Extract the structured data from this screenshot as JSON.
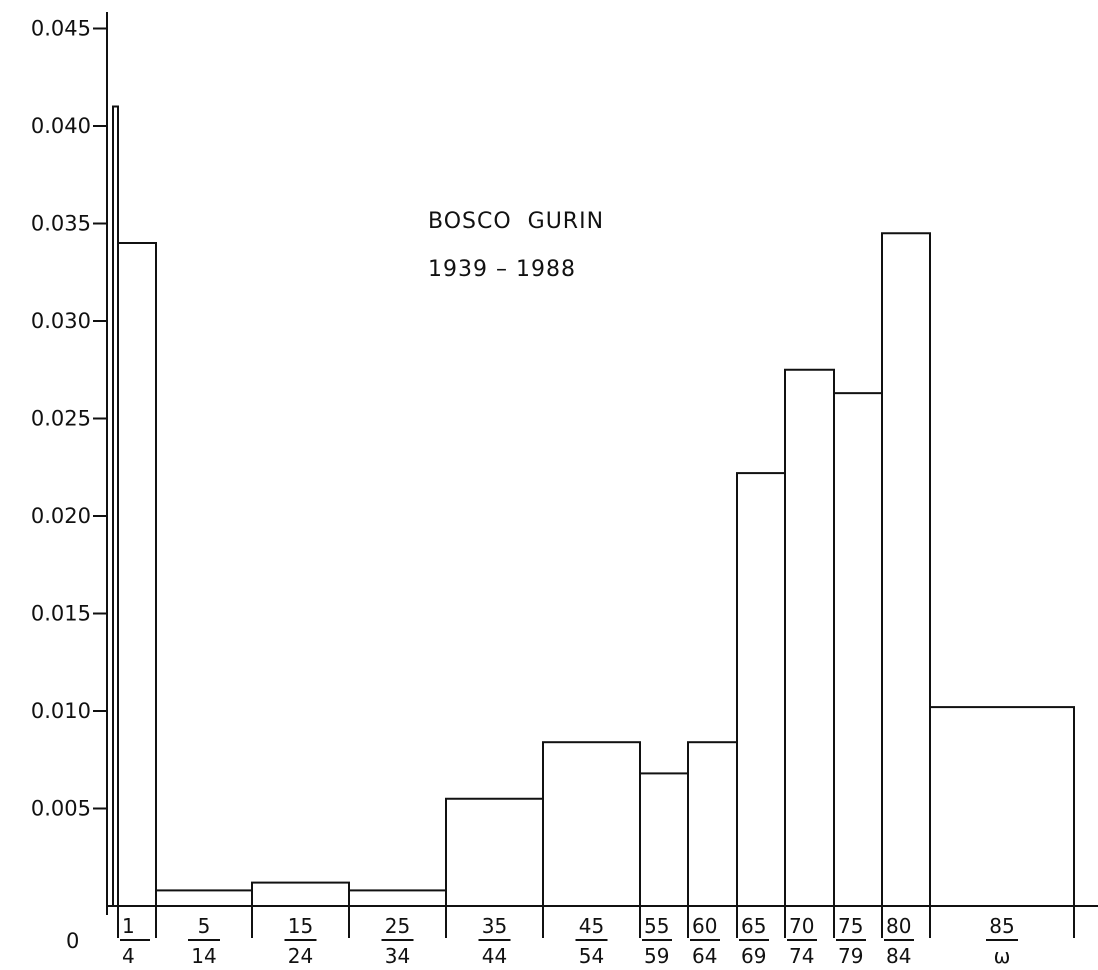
{
  "chart_data": {
    "type": "bar",
    "title": "BOSCO  GURIN",
    "subtitle": "1939 – 1988",
    "xlabel": "",
    "ylabel": "",
    "ylim": [
      0,
      0.045
    ],
    "y_ticks": [
      {
        "value": 0.005,
        "label": "0.005"
      },
      {
        "value": 0.01,
        "label": "0.010"
      },
      {
        "value": 0.015,
        "label": "0.015"
      },
      {
        "value": 0.02,
        "label": "0.020"
      },
      {
        "value": 0.025,
        "label": "0.025"
      },
      {
        "value": 0.03,
        "label": "0.030"
      },
      {
        "value": 0.035,
        "label": "0.035"
      },
      {
        "value": 0.04,
        "label": "0.040"
      },
      {
        "value": 0.045,
        "label": "0.045"
      }
    ],
    "zero_label": "0",
    "grid": false,
    "bins": [
      {
        "from": "0",
        "to": "0",
        "lower": "",
        "upper": "",
        "value": 0.041
      },
      {
        "from": "1",
        "to": "4",
        "lower": "1",
        "upper": "4",
        "value": 0.034
      },
      {
        "from": "5",
        "to": "14",
        "lower": "5",
        "upper": "14",
        "value": 0.0008
      },
      {
        "from": "15",
        "to": "24",
        "lower": "15",
        "upper": "24",
        "value": 0.0012
      },
      {
        "from": "25",
        "to": "34",
        "lower": "25",
        "upper": "34",
        "value": 0.0008
      },
      {
        "from": "35",
        "to": "44",
        "lower": "35",
        "upper": "44",
        "value": 0.0055
      },
      {
        "from": "45",
        "to": "54",
        "lower": "45",
        "upper": "54",
        "value": 0.0084
      },
      {
        "from": "55",
        "to": "59",
        "lower": "55",
        "upper": "59",
        "value": 0.0068
      },
      {
        "from": "60",
        "to": "64",
        "lower": "60",
        "upper": "64",
        "value": 0.0084
      },
      {
        "from": "65",
        "to": "69",
        "lower": "65",
        "upper": "69",
        "value": 0.0222
      },
      {
        "from": "70",
        "to": "74",
        "lower": "70",
        "upper": "74",
        "value": 0.0275
      },
      {
        "from": "75",
        "to": "79",
        "lower": "75",
        "upper": "79",
        "value": 0.0263
      },
      {
        "from": "80",
        "to": "84",
        "lower": "80",
        "upper": "84",
        "value": 0.0345
      },
      {
        "from": "85",
        "to": "ω",
        "lower": "85",
        "upper": "ω",
        "value": 0.0102
      }
    ]
  }
}
